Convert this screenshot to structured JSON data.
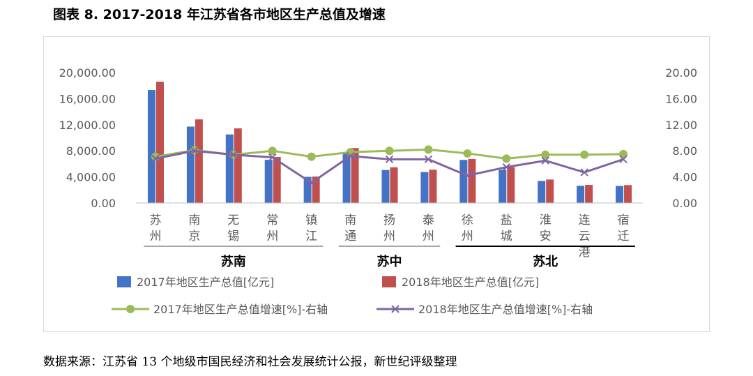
{
  "header": {
    "title": "图表 8. 2017-2018 年江苏省各市地区生产总值及增速"
  },
  "footer": {
    "source": "数据来源：江苏省 13 个地级市国民经济和社会发展统计公报，新世纪评级整理"
  },
  "colors": {
    "bar2017": "#4472C4",
    "bar2018": "#C0504D",
    "line2017": "#9BBB59",
    "line2018": "#8064A2"
  },
  "chart_data": {
    "type": "bar",
    "categories": [
      "苏州",
      "南京",
      "无锡",
      "常州",
      "镇江",
      "南通",
      "扬州",
      "泰州",
      "徐州",
      "盐城",
      "淮安",
      "连云港",
      "宿迁"
    ],
    "series": [
      {
        "name": "2017年地区生产总值[亿元]",
        "type": "bar",
        "axis": "left",
        "values": [
          17320,
          11715,
          10512,
          6622,
          4010,
          7734,
          5064,
          4745,
          6605,
          5083,
          3387,
          2640,
          2611
        ]
      },
      {
        "name": "2018年地区生产总值[亿元]",
        "type": "bar",
        "axis": "left",
        "values": [
          18597,
          12820,
          11439,
          7050,
          4050,
          8427,
          5466,
          5108,
          6755,
          5487,
          3601,
          2772,
          2750
        ]
      },
      {
        "name": "2017年地区生产总值增速[%]-右轴",
        "type": "line",
        "axis": "right",
        "marker": "circle",
        "values": [
          7.1,
          8.1,
          7.4,
          8.0,
          7.1,
          7.8,
          8.0,
          8.2,
          7.6,
          6.8,
          7.4,
          7.4,
          7.5
        ]
      },
      {
        "name": "2018年地区生产总值增速[%]-右轴",
        "type": "line",
        "axis": "right",
        "marker": "x",
        "values": [
          6.8,
          8.0,
          7.4,
          7.0,
          3.1,
          7.2,
          6.7,
          6.7,
          4.2,
          5.5,
          6.5,
          4.7,
          6.7
        ]
      }
    ],
    "y_left": {
      "min": 0,
      "max": 20000,
      "ticks": [
        "0.00",
        "4,000.00",
        "8,000.00",
        "12,000.00",
        "16,000.00",
        "20,000.00"
      ]
    },
    "y_right": {
      "min": 0,
      "max": 20,
      "ticks": [
        "0.00",
        "4.00",
        "8.00",
        "12.00",
        "16.00",
        "20.00"
      ]
    },
    "groups": [
      {
        "label": "苏南",
        "from": 0,
        "to": 4,
        "line_color": "#a6a6a6"
      },
      {
        "label": "苏中",
        "from": 5,
        "to": 7,
        "line_color": "#a6a6a6"
      },
      {
        "label": "苏北",
        "from": 8,
        "to": 12,
        "line_color": "#000000"
      }
    ],
    "grid": false,
    "legend_position": "bottom"
  }
}
